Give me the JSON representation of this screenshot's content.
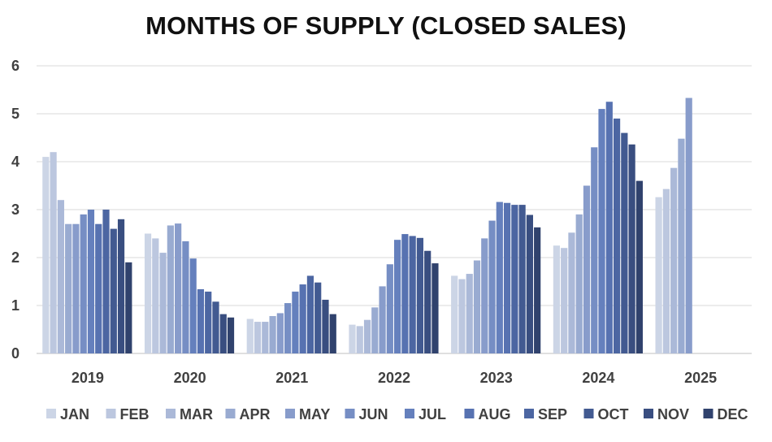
{
  "chart_data": {
    "type": "bar",
    "title": "MONTHS OF SUPPLY (CLOSED SALES)",
    "xlabel": "",
    "ylabel": "",
    "ylim": [
      0,
      6
    ],
    "yticks": [
      "0",
      "1",
      "2",
      "3",
      "4",
      "5",
      "6"
    ],
    "grid": true,
    "legend_position": "bottom",
    "categories": [
      "2019",
      "2020",
      "2021",
      "2022",
      "2023",
      "2024",
      "2025"
    ],
    "series": [
      {
        "name": "JAN",
        "color": "#ccd5e6",
        "values": [
          4.1,
          2.5,
          0.72,
          0.6,
          1.62,
          2.25,
          3.26
        ]
      },
      {
        "name": "FEB",
        "color": "#bcc7df",
        "values": [
          4.2,
          2.4,
          0.66,
          0.57,
          1.55,
          2.2,
          3.43
        ]
      },
      {
        "name": "MAR",
        "color": "#abb9d8",
        "values": [
          3.2,
          2.1,
          0.66,
          0.7,
          1.66,
          2.52,
          3.87
        ]
      },
      {
        "name": "APR",
        "color": "#99abd1",
        "values": [
          2.7,
          2.67,
          0.78,
          0.96,
          1.94,
          2.9,
          4.48
        ]
      },
      {
        "name": "MAY",
        "color": "#889ccb",
        "values": [
          2.7,
          2.71,
          0.84,
          1.4,
          2.4,
          3.5,
          5.33
        ]
      },
      {
        "name": "JUN",
        "color": "#768ec4",
        "values": [
          2.9,
          2.34,
          1.05,
          1.86,
          2.77,
          4.3,
          null
        ]
      },
      {
        "name": "JUL",
        "color": "#6580bd",
        "values": [
          3.0,
          1.98,
          1.29,
          2.37,
          3.16,
          5.1,
          null
        ]
      },
      {
        "name": "AUG",
        "color": "#5772b1",
        "values": [
          2.7,
          1.34,
          1.44,
          2.49,
          3.14,
          5.25,
          null
        ]
      },
      {
        "name": "SEP",
        "color": "#4c66a2",
        "values": [
          3.0,
          1.29,
          1.62,
          2.45,
          3.1,
          4.9,
          null
        ]
      },
      {
        "name": "OCT",
        "color": "#425a91",
        "values": [
          2.6,
          1.08,
          1.48,
          2.41,
          3.1,
          4.6,
          null
        ]
      },
      {
        "name": "NOV",
        "color": "#394e80",
        "values": [
          2.8,
          0.82,
          1.12,
          2.14,
          2.89,
          4.36,
          null
        ]
      },
      {
        "name": "DEC",
        "color": "#30426d",
        "values": [
          1.9,
          0.75,
          0.82,
          1.88,
          2.63,
          3.6,
          null
        ]
      }
    ]
  }
}
